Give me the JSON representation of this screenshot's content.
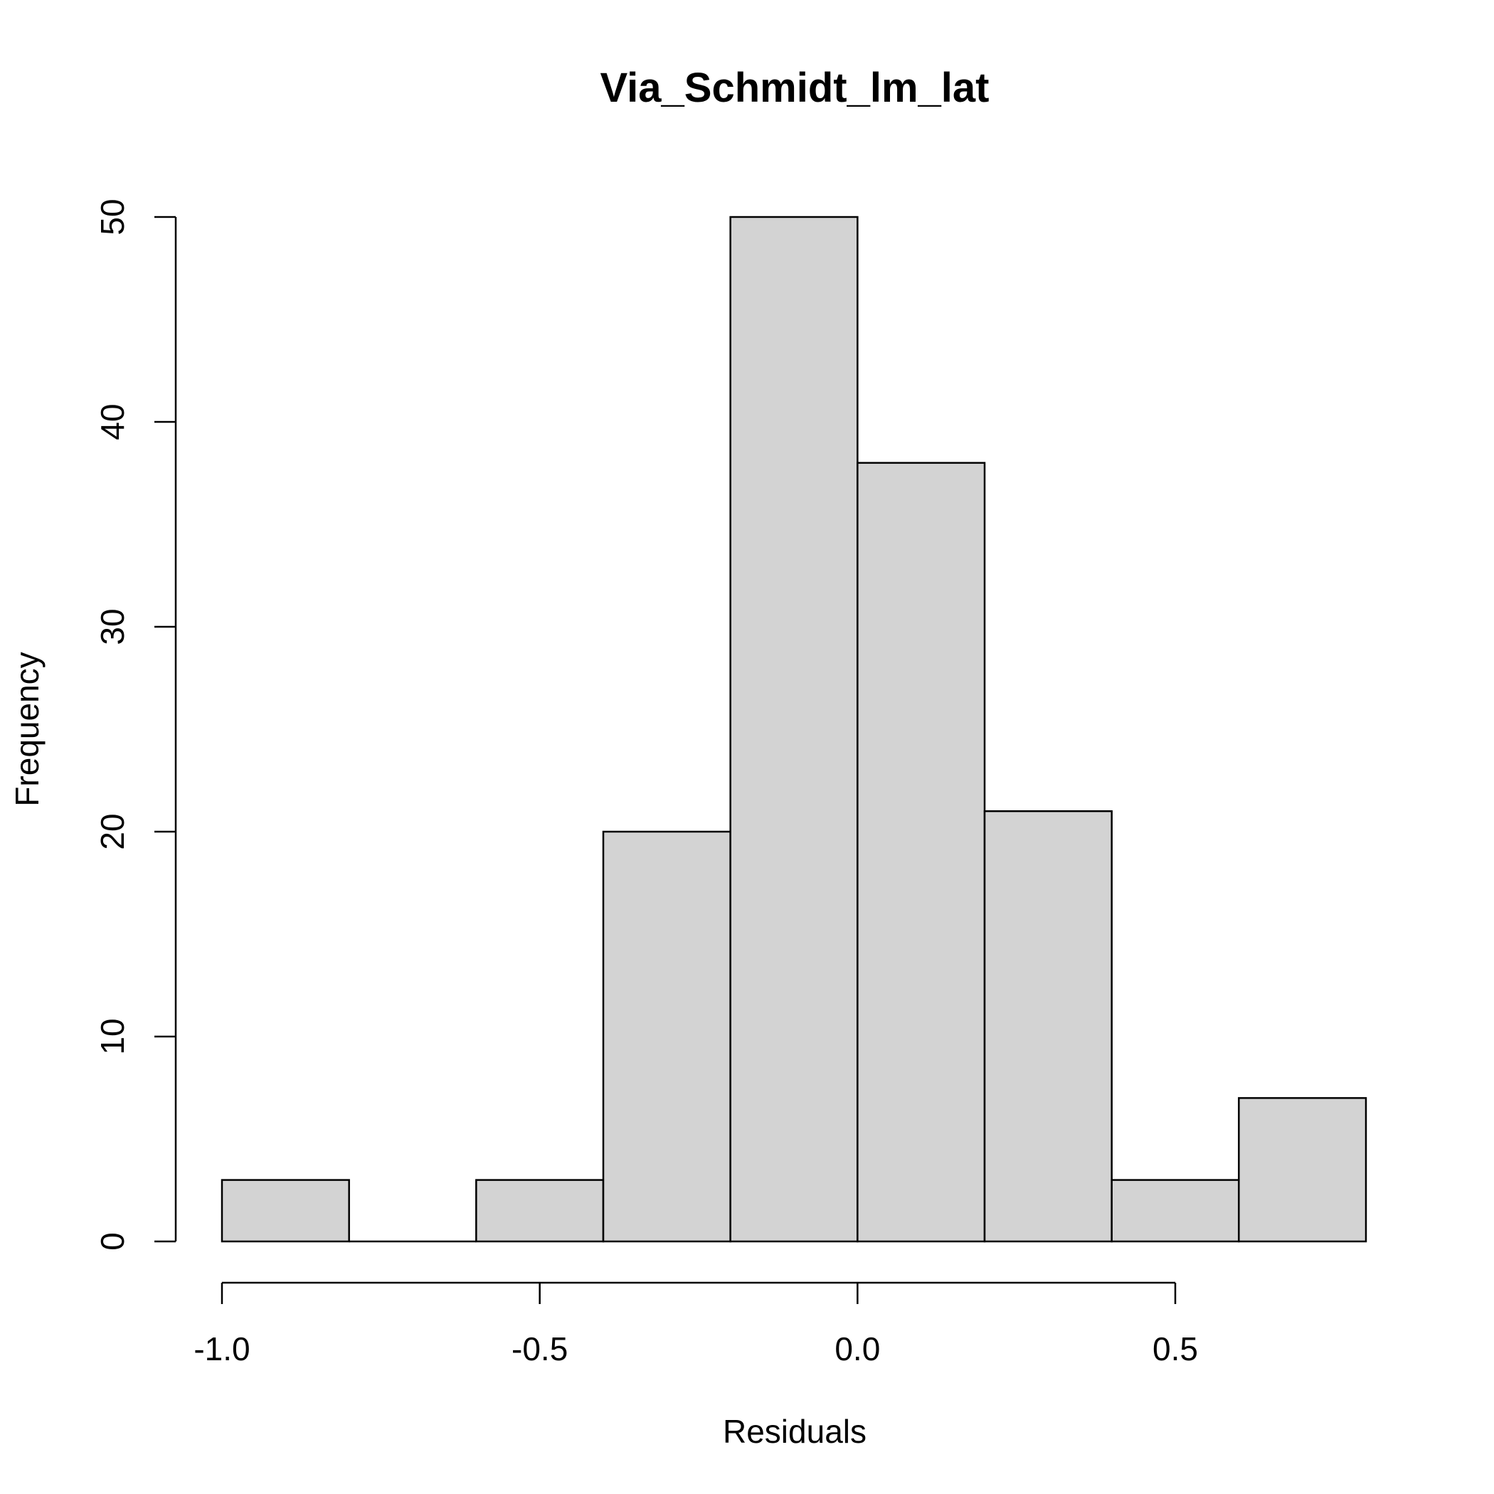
{
  "chart_data": {
    "type": "bar",
    "title": "Via_Schmidt_lm_lat",
    "xlabel": "Residuals",
    "ylabel": "Frequency",
    "bins": [
      {
        "x0": -1.0,
        "x1": -0.8,
        "count": 3
      },
      {
        "x0": -0.8,
        "x1": -0.6,
        "count": 0
      },
      {
        "x0": -0.6,
        "x1": -0.4,
        "count": 3
      },
      {
        "x0": -0.4,
        "x1": -0.2,
        "count": 20
      },
      {
        "x0": -0.2,
        "x1": 0.0,
        "count": 50
      },
      {
        "x0": 0.0,
        "x1": 0.2,
        "count": 38
      },
      {
        "x0": 0.2,
        "x1": 0.4,
        "count": 21
      },
      {
        "x0": 0.4,
        "x1": 0.6,
        "count": 3
      },
      {
        "x0": 0.6,
        "x1": 0.8,
        "count": 7
      }
    ],
    "x_ticks": [
      {
        "value": -1.0,
        "label": "-1.0"
      },
      {
        "value": -0.5,
        "label": "-0.5"
      },
      {
        "value": 0.0,
        "label": "0.0"
      },
      {
        "value": 0.5,
        "label": "0.5"
      }
    ],
    "y_ticks": [
      {
        "value": 0,
        "label": "0"
      },
      {
        "value": 10,
        "label": "10"
      },
      {
        "value": 20,
        "label": "20"
      },
      {
        "value": 30,
        "label": "30"
      },
      {
        "value": 40,
        "label": "40"
      },
      {
        "value": 50,
        "label": "50"
      }
    ],
    "xlim": [
      -1.0,
      0.8
    ],
    "ylim": [
      0,
      50
    ],
    "grid": false,
    "legend": "none",
    "bar_color": "#d3d3d3",
    "edge_color": "#000000"
  }
}
